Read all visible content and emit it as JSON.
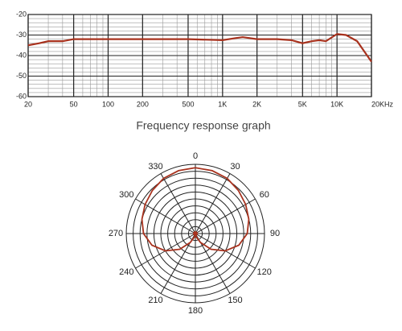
{
  "chart_data": [
    {
      "type": "line",
      "title": "Frequency response graph",
      "xscale": "log",
      "xlim": [
        20,
        20000
      ],
      "ylim": [
        -60,
        -20
      ],
      "xticks": [
        20,
        50,
        100,
        200,
        500,
        {
          "value": 1000,
          "label": "1K"
        },
        {
          "value": 2000,
          "label": "2K"
        },
        {
          "value": 5000,
          "label": "5K"
        },
        {
          "value": 10000,
          "label": "10K"
        },
        {
          "value": 20000,
          "label": "20KHz"
        }
      ],
      "yticks": [
        -20,
        -30,
        -40,
        -50,
        -60
      ],
      "grid": true,
      "minor_grid": true,
      "series": [
        {
          "color": "#a8321e",
          "x": [
            20,
            25,
            30,
            40,
            50,
            70,
            100,
            200,
            500,
            1000,
            1300,
            1500,
            2000,
            3000,
            4000,
            5000,
            6000,
            7000,
            8000,
            10000,
            12000,
            15000,
            20000
          ],
          "values": [
            -35,
            -34,
            -33,
            -33,
            -32,
            -32,
            -32,
            -32,
            -32,
            -32.5,
            -31.5,
            -31,
            -32,
            -32,
            -32.5,
            -34,
            -33,
            -32.5,
            -33,
            -29.5,
            -30,
            -33,
            -43
          ]
        }
      ]
    },
    {
      "type": "polar",
      "rlim": [
        0,
        1
      ],
      "rticks": [
        0.1,
        0.2,
        0.3,
        0.4,
        0.5,
        0.6,
        0.7,
        0.8,
        0.9,
        1
      ],
      "thetaticks": [
        0,
        30,
        60,
        90,
        120,
        150,
        180,
        210,
        240,
        270,
        300,
        330
      ],
      "series": [
        {
          "color": "#a8321e",
          "theta": [
            0,
            15,
            30,
            45,
            60,
            75,
            90,
            105,
            120,
            135,
            150,
            165,
            180,
            195,
            210,
            225,
            240,
            255,
            270,
            285,
            300,
            315,
            330,
            345,
            360
          ],
          "values": [
            0.95,
            0.94,
            0.92,
            0.88,
            0.84,
            0.8,
            0.75,
            0.65,
            0.5,
            0.32,
            0.15,
            0.05,
            0.02,
            0.05,
            0.15,
            0.32,
            0.5,
            0.65,
            0.75,
            0.8,
            0.84,
            0.88,
            0.92,
            0.94,
            0.95
          ]
        }
      ]
    }
  ]
}
